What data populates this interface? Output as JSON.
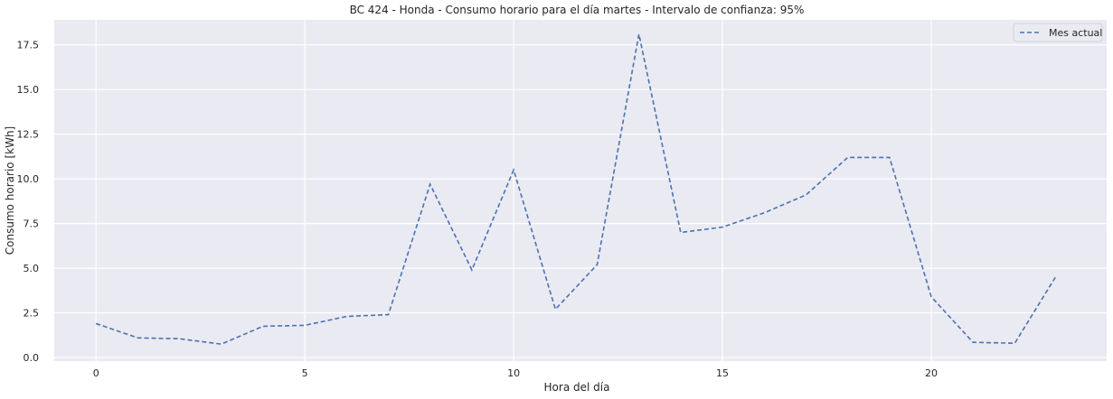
{
  "chart_data": {
    "type": "line",
    "title": "BC 424 - Honda - Consumo horario para el día martes - Intervalo de confianza: 95%",
    "xlabel": "Hora del día",
    "ylabel": "Consumo horario [kWh]",
    "xlim": [
      -1,
      24.2
    ],
    "ylim": [
      -0.2,
      18.9
    ],
    "x_ticks": [
      0,
      5,
      10,
      15,
      20
    ],
    "y_ticks": [
      0.0,
      2.5,
      5.0,
      7.5,
      10.0,
      12.5,
      15.0,
      17.5
    ],
    "x_tick_labels": [
      "0",
      "5",
      "10",
      "15",
      "20"
    ],
    "y_tick_labels": [
      "0.0",
      "2.5",
      "5.0",
      "7.5",
      "10.0",
      "12.5",
      "15.0",
      "17.5"
    ],
    "grid": true,
    "legend_position": "top-right",
    "series": [
      {
        "name": "Mes actual",
        "style": "dashed",
        "color": "#4c72b0",
        "x": [
          0,
          1,
          2,
          3,
          4,
          5,
          6,
          7,
          8,
          9,
          10,
          11,
          12,
          13,
          14,
          15,
          16,
          17,
          18,
          19,
          20,
          21,
          22,
          23
        ],
        "y": [
          1.9,
          1.1,
          1.05,
          0.75,
          1.75,
          1.8,
          2.3,
          2.4,
          9.7,
          4.9,
          10.5,
          2.7,
          5.2,
          18.1,
          7.0,
          7.3,
          8.1,
          9.1,
          11.2,
          11.2,
          3.4,
          0.85,
          0.8,
          4.6
        ]
      }
    ]
  },
  "colors": {
    "plot_background": "#eaeaf2",
    "grid": "#ffffff",
    "text": "#262626"
  }
}
